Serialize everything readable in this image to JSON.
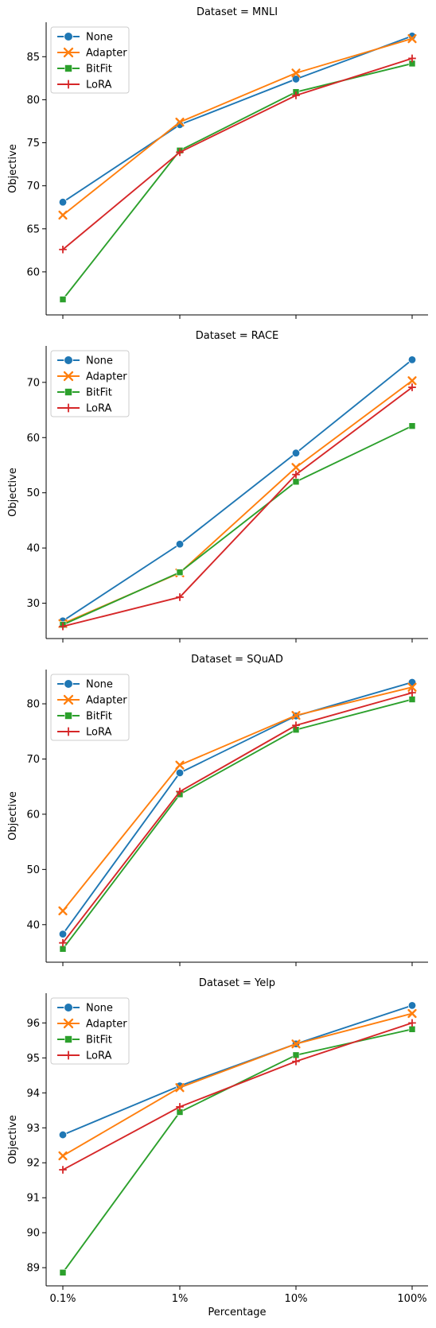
{
  "colors": {
    "None": "#1f77b4",
    "Adapter": "#ff7f0e",
    "BitFit": "#2ca02c",
    "LoRA": "#d62728"
  },
  "chart_data": [
    {
      "type": "line",
      "title": "Dataset = MNLI",
      "xlabel": "",
      "ylabel": "Objective",
      "categories": [
        "0.1%",
        "1%",
        "10%",
        "100%"
      ],
      "ylim": [
        55.0,
        89.0
      ],
      "yticks": [
        60,
        65,
        70,
        75,
        80,
        85
      ],
      "grid": false,
      "legend": "top-left",
      "series": [
        {
          "name": "None",
          "values": [
            68.1,
            77.1,
            82.4,
            87.4
          ]
        },
        {
          "name": "Adapter",
          "values": [
            66.6,
            77.4,
            83.1,
            87.1
          ]
        },
        {
          "name": "BitFit",
          "values": [
            56.8,
            74.1,
            80.9,
            84.2
          ]
        },
        {
          "name": "LoRA",
          "values": [
            62.6,
            73.9,
            80.5,
            84.8
          ]
        }
      ]
    },
    {
      "type": "line",
      "title": "Dataset = RACE",
      "xlabel": "",
      "ylabel": "Objective",
      "categories": [
        "0.1%",
        "1%",
        "10%",
        "100%"
      ],
      "ylim": [
        23.6,
        76.6
      ],
      "yticks": [
        30,
        40,
        50,
        60,
        70
      ],
      "grid": false,
      "legend": "top-left",
      "series": [
        {
          "name": "None",
          "values": [
            26.8,
            40.7,
            57.2,
            74.1
          ]
        },
        {
          "name": "Adapter",
          "values": [
            26.3,
            35.5,
            54.6,
            70.3
          ]
        },
        {
          "name": "BitFit",
          "values": [
            26.1,
            35.6,
            52.0,
            62.1
          ]
        },
        {
          "name": "LoRA",
          "values": [
            25.8,
            31.1,
            53.3,
            69.1
          ]
        }
      ]
    },
    {
      "type": "line",
      "title": "Dataset = SQuAD",
      "xlabel": "",
      "ylabel": "Objective",
      "categories": [
        "0.1%",
        "1%",
        "10%",
        "100%"
      ],
      "ylim": [
        33.2,
        86.2
      ],
      "yticks": [
        40,
        50,
        60,
        70,
        80
      ],
      "grid": false,
      "legend": "top-left",
      "series": [
        {
          "name": "None",
          "values": [
            38.3,
            67.5,
            77.8,
            83.9
          ]
        },
        {
          "name": "Adapter",
          "values": [
            42.5,
            68.9,
            77.9,
            83.0
          ]
        },
        {
          "name": "BitFit",
          "values": [
            35.6,
            63.6,
            75.3,
            80.8
          ]
        },
        {
          "name": "LoRA",
          "values": [
            36.7,
            64.1,
            76.1,
            82.0
          ]
        }
      ]
    },
    {
      "type": "line",
      "title": "Dataset = Yelp",
      "xlabel": "Percentage",
      "ylabel": "Objective",
      "categories": [
        "0.1%",
        "1%",
        "10%",
        "100%"
      ],
      "ylim": [
        88.48,
        96.85
      ],
      "yticks": [
        89,
        90,
        91,
        92,
        93,
        94,
        95,
        96
      ],
      "grid": false,
      "legend": "top-left",
      "series": [
        {
          "name": "None",
          "values": [
            92.8,
            94.2,
            95.4,
            96.5
          ]
        },
        {
          "name": "Adapter",
          "values": [
            92.2,
            94.15,
            95.4,
            96.27
          ]
        },
        {
          "name": "BitFit",
          "values": [
            88.86,
            93.45,
            95.08,
            95.82
          ]
        },
        {
          "name": "LoRA",
          "values": [
            91.8,
            93.6,
            94.9,
            96.0
          ]
        }
      ]
    }
  ]
}
